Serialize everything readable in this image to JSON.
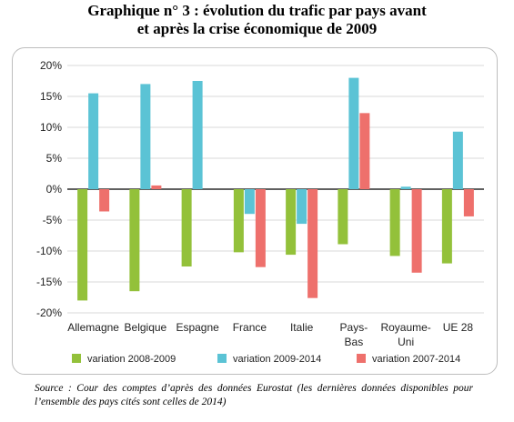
{
  "title_line1": "Graphique n° 3 : évolution du trafic par pays avant",
  "title_line2": "et après la crise économique de 2009",
  "source": "Source : Cour des comptes d’après des données Eurostat (les dernières données disponibles pour l’ensemble des pays cités sont celles de 2014)",
  "chart_data": {
    "type": "bar",
    "categories": [
      [
        "Allemagne"
      ],
      [
        "Belgique"
      ],
      [
        "Espagne"
      ],
      [
        "France"
      ],
      [
        "Italie"
      ],
      [
        "Pays-",
        "Bas"
      ],
      [
        "Royaume-",
        "Uni"
      ],
      [
        "UE 28"
      ]
    ],
    "series": [
      {
        "name": "variation 2008-2009",
        "color": "#93c13a",
        "values": [
          -18.0,
          -16.5,
          -12.5,
          -10.2,
          -10.6,
          -8.9,
          -10.8,
          -12.0
        ]
      },
      {
        "name": "variation 2009-2014",
        "color": "#5bc3d5",
        "values": [
          15.5,
          17.0,
          17.5,
          -4.0,
          -5.6,
          18.0,
          0.4,
          9.3
        ]
      },
      {
        "name": "variation 2007-2014",
        "color": "#ee706c",
        "values": [
          -3.6,
          0.6,
          0.0,
          -12.6,
          -17.6,
          12.3,
          -13.5,
          -4.4
        ]
      }
    ],
    "yticks": [
      "20%",
      "15%",
      "10%",
      "5%",
      "0%",
      "-5%",
      "-10%",
      "-15%",
      "-20%"
    ],
    "ylim": [
      -20,
      20
    ],
    "grid": true,
    "legend_position": "bottom"
  }
}
